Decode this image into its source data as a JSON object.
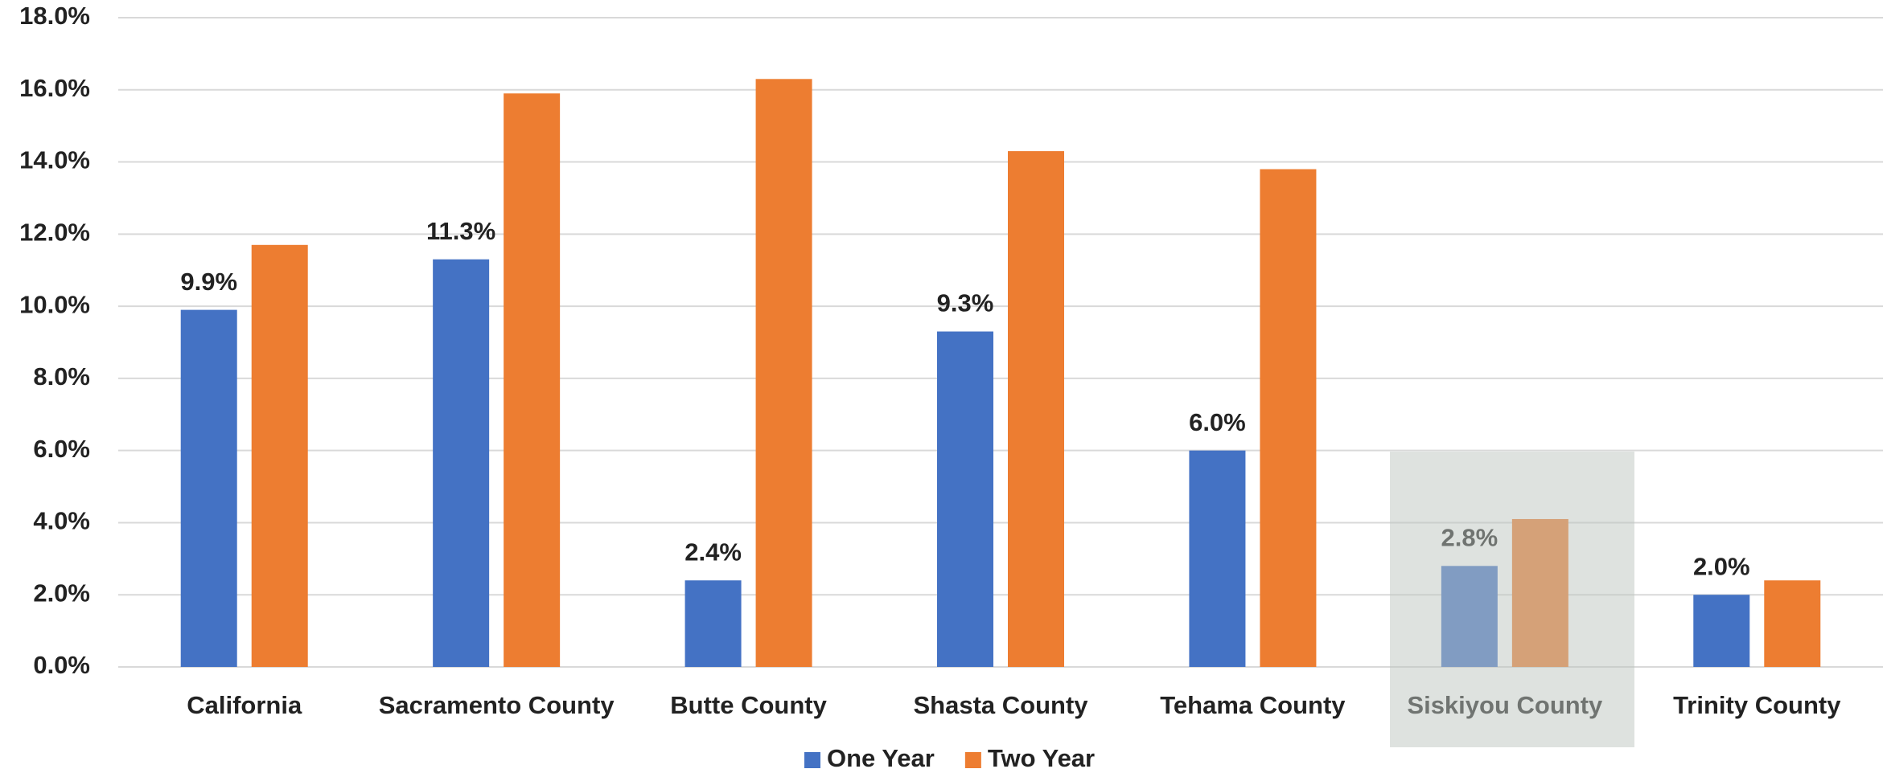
{
  "chart_data": {
    "type": "bar",
    "categories": [
      "California",
      "Sacramento County",
      "Butte County",
      "Shasta County",
      "Tehama County",
      "Siskiyou County",
      "Trinity County"
    ],
    "series": [
      {
        "name": "One Year",
        "color": "#4472c4",
        "values": [
          9.9,
          11.3,
          2.4,
          9.3,
          6.0,
          2.8,
          2.0
        ],
        "value_labels": [
          "9.9%",
          "11.3%",
          "2.4%",
          "9.3%",
          "6.0%",
          "2.8%",
          "2.0%"
        ]
      },
      {
        "name": "Two Year",
        "color": "#ed7d31",
        "values": [
          11.7,
          15.9,
          16.3,
          14.3,
          13.8,
          4.1,
          2.4
        ]
      }
    ],
    "ylim": [
      0,
      18
    ],
    "yticks": [
      {
        "value": 0,
        "label": "0.0%"
      },
      {
        "value": 2,
        "label": "2.0%"
      },
      {
        "value": 4,
        "label": "4.0%"
      },
      {
        "value": 6,
        "label": "6.0%"
      },
      {
        "value": 8,
        "label": "8.0%"
      },
      {
        "value": 10,
        "label": "10.0%"
      },
      {
        "value": 12,
        "label": "12.0%"
      },
      {
        "value": 14,
        "label": "14.0%"
      },
      {
        "value": 16,
        "label": "16.0%"
      },
      {
        "value": 18,
        "label": "18.0%"
      }
    ],
    "grid": true,
    "legend": "bottom"
  }
}
